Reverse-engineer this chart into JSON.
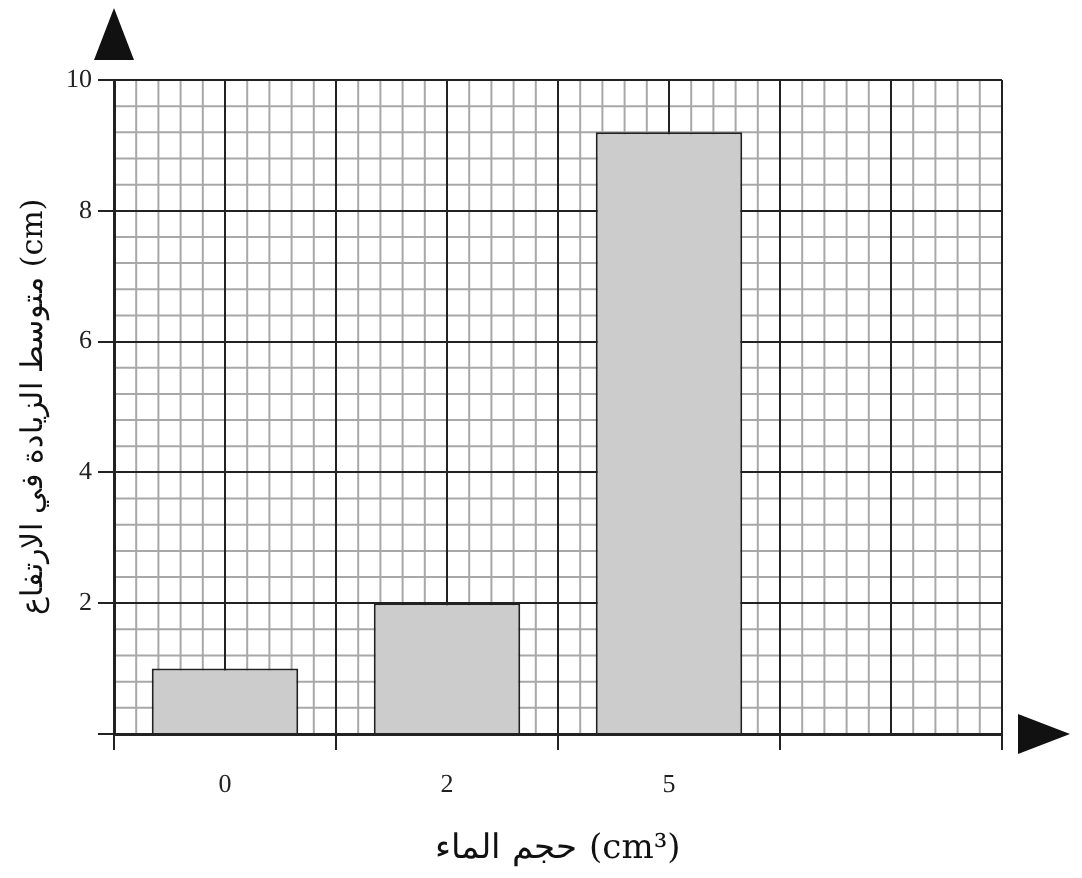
{
  "chart_data": {
    "type": "bar",
    "xlabel": "حجم الماء (cm³)",
    "ylabel": "متوسط الزيادة في الارتفاع (cm)",
    "categories": [
      "0",
      "2",
      "5",
      null
    ],
    "values": [
      1.0,
      2.0,
      9.2,
      null
    ],
    "color": "#cccccc",
    "ylim": [
      0,
      10
    ],
    "yticks": [
      {
        "value": 0,
        "label": null
      },
      2,
      4,
      6,
      8,
      10
    ],
    "grid": true
  }
}
